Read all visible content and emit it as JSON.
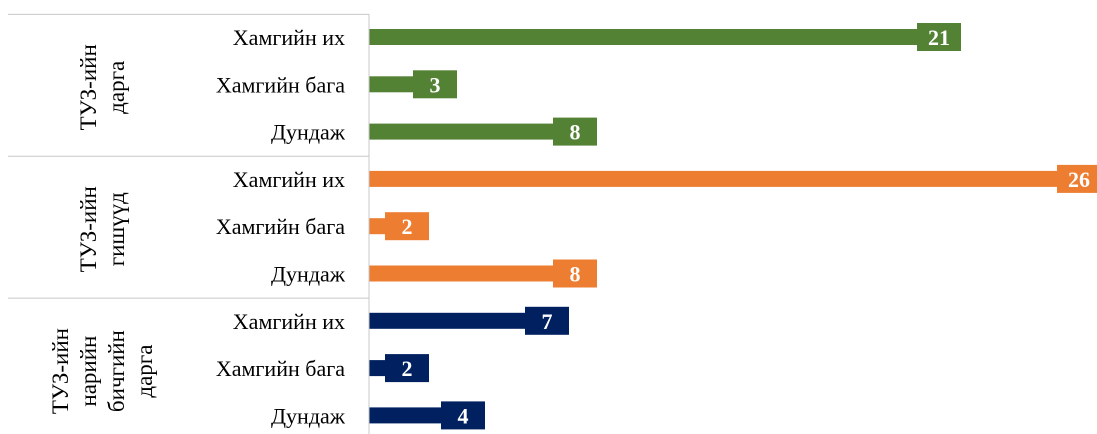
{
  "chart_data": {
    "type": "bar",
    "orientation": "horizontal",
    "groups": [
      {
        "label_lines": [
          "ТУЗ-ийн",
          "дарга"
        ],
        "color": "#548235",
        "categories": [
          "Хамгийн их",
          "Хамгийн бага",
          "Дундаж"
        ],
        "values": [
          21,
          3,
          8
        ]
      },
      {
        "label_lines": [
          "ТУЗ-ийн",
          "гишүүд"
        ],
        "color": "#ED7D31",
        "categories": [
          "Хамгийн их",
          "Хамгийн бага",
          "Дундаж"
        ],
        "values": [
          26,
          2,
          8
        ]
      },
      {
        "label_lines": [
          "ТУЗ-ийн",
          "нарийн",
          "бичгийн",
          "дарга"
        ],
        "color": "#002060",
        "categories": [
          "Хамгийн их",
          "Хамгийн бага",
          "Дундаж"
        ],
        "values": [
          7,
          2,
          4
        ]
      }
    ],
    "xlim": [
      0,
      26
    ],
    "grid": false,
    "legend": "none",
    "data_labels": "inside-end"
  }
}
